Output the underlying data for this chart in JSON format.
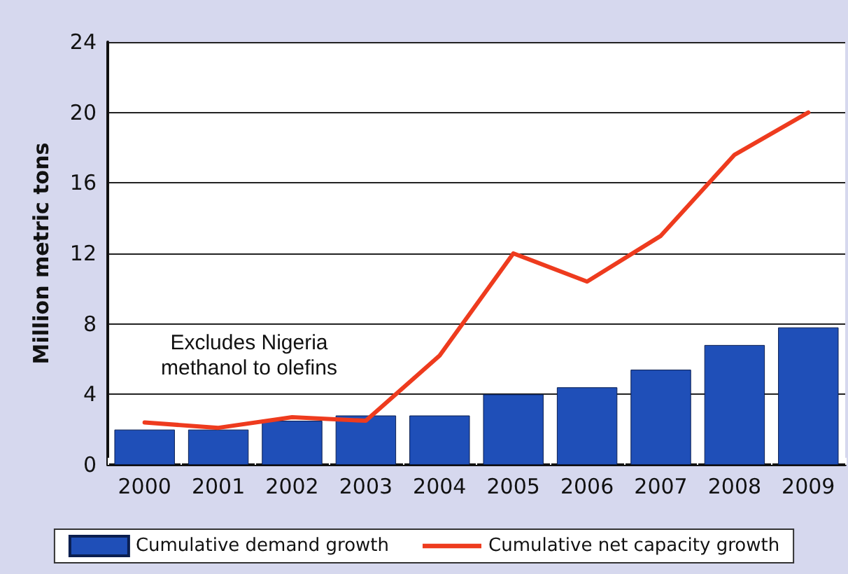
{
  "chart_data": {
    "type": "bar",
    "ylabel": "Million metric tons",
    "categories": [
      "2000",
      "2001",
      "2002",
      "2003",
      "2004",
      "2005",
      "2006",
      "2007",
      "2008",
      "2009"
    ],
    "series": [
      {
        "name": "Cumulative demand growth",
        "color": "#1f4fb8",
        "values": [
          2.0,
          2.0,
          2.5,
          2.8,
          2.8,
          4.0,
          4.4,
          5.4,
          6.8,
          7.8
        ]
      },
      {
        "name": "Cumulative net capacity growth",
        "type": "line",
        "color": "#ee3b1e",
        "values": [
          2.4,
          2.1,
          2.7,
          2.5,
          6.2,
          12.0,
          10.4,
          13.0,
          17.6,
          20.0
        ]
      }
    ],
    "ylim": [
      0,
      24
    ],
    "yticks": [
      0,
      4,
      8,
      12,
      16,
      20,
      24
    ],
    "grid": "y",
    "legend": "bottom",
    "marker": "none",
    "annotations": [
      "Excludes Nigeria\nmethanol to olefins"
    ]
  }
}
